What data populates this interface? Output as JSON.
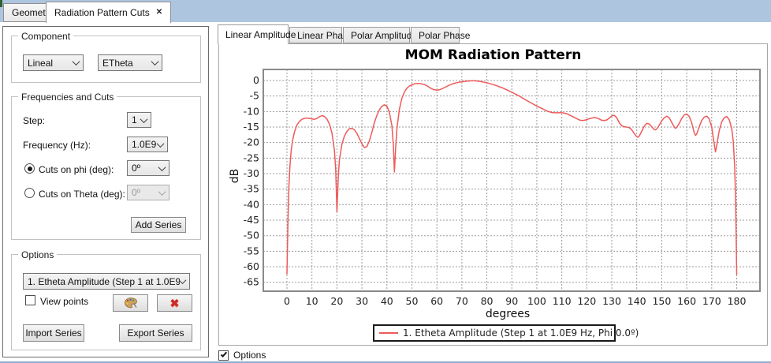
{
  "window": {
    "tabs": [
      {
        "label": "Geometry"
      },
      {
        "label": "Radiation Pattern Cuts",
        "close": "✕"
      }
    ]
  },
  "icons": {
    "delete": "✖"
  },
  "left_panel": {
    "component": {
      "title": "Component",
      "combo1": "Lineal",
      "combo2": "ETheta"
    },
    "freq_cuts": {
      "title": "Frequencies and Cuts",
      "step_label": "Step:",
      "step_value": "1",
      "freq_label": "Frequency (Hz):",
      "freq_value": "1.0E9",
      "phi_label": "Cuts on phi (deg):",
      "phi_value": "0º",
      "theta_label": "Cuts on Theta (deg):",
      "theta_value": "0º",
      "add_series": "Add Series"
    },
    "options": {
      "title": "Options",
      "series_combo": "1. Etheta Amplitude (Step 1 at 1.0E9 ...",
      "view_points": "View points",
      "import": "Import Series",
      "export": "Export Series"
    }
  },
  "right_panel": {
    "tabs": [
      "Linear Amplitude",
      "Linear Phase",
      "Polar Amplitude",
      "Polar Phase"
    ],
    "options_checkbox": "Options"
  },
  "chart_data": {
    "type": "line",
    "title": "MOM Radiation Pattern",
    "xlabel": "degrees",
    "ylabel": "dB",
    "xlim": [
      0,
      180
    ],
    "ylim": [
      -65,
      0
    ],
    "grid": true,
    "x_ticks": [
      0,
      10,
      20,
      30,
      40,
      50,
      60,
      70,
      80,
      90,
      100,
      110,
      120,
      130,
      140,
      150,
      160,
      170,
      180
    ],
    "y_ticks": [
      0,
      -5,
      -10,
      -15,
      -20,
      -25,
      -30,
      -35,
      -40,
      -45,
      -50,
      -55,
      -60,
      -65
    ],
    "legend": {
      "position": "bottom",
      "entries": [
        {
          "label": "1. Etheta Amplitude (Step 1 at 1.0E9 Hz, Phi 0.0º)",
          "color": "#ee5a5a"
        }
      ]
    },
    "series": [
      {
        "name": "1. Etheta Amplitude (Step 1 at 1.0E9 Hz, Phi 0.0º)",
        "color": "#ee5a5a",
        "points": [
          [
            0,
            -62.3
          ],
          [
            0.4,
            -45
          ],
          [
            0.8,
            -34
          ],
          [
            1.2,
            -27.5
          ],
          [
            1.7,
            -22.5
          ],
          [
            2.2,
            -19.5
          ],
          [
            3,
            -16.6
          ],
          [
            4,
            -14.3
          ],
          [
            5,
            -13.2
          ],
          [
            6,
            -12.5
          ],
          [
            7,
            -12.2
          ],
          [
            8,
            -12.1
          ],
          [
            9,
            -12.2
          ],
          [
            10,
            -12.4
          ],
          [
            11,
            -12.5
          ],
          [
            12,
            -12.2
          ],
          [
            13,
            -11.7
          ],
          [
            14,
            -11.3
          ],
          [
            15,
            -11.6
          ],
          [
            16,
            -12.4
          ],
          [
            17,
            -14.0
          ],
          [
            18,
            -16.9
          ],
          [
            19,
            -22.5
          ],
          [
            19.5,
            -28.5
          ],
          [
            20,
            -42.3
          ],
          [
            20.6,
            -30
          ],
          [
            21,
            -25.5
          ],
          [
            22,
            -20.5
          ],
          [
            23,
            -17.9
          ],
          [
            24,
            -16.4
          ],
          [
            25,
            -15.5
          ],
          [
            26,
            -15.4
          ],
          [
            27,
            -15.9
          ],
          [
            28,
            -17.0
          ],
          [
            29,
            -18.7
          ],
          [
            30,
            -20.4
          ],
          [
            31,
            -21.6
          ],
          [
            32,
            -21.3
          ],
          [
            33,
            -19.4
          ],
          [
            34,
            -16.6
          ],
          [
            35,
            -13.6
          ],
          [
            36,
            -11.2
          ],
          [
            37,
            -9.4
          ],
          [
            38,
            -8.3
          ],
          [
            39,
            -7.8
          ],
          [
            40,
            -8.3
          ],
          [
            41,
            -10.2
          ],
          [
            42,
            -14.5
          ],
          [
            42.6,
            -21
          ],
          [
            43,
            -29.5
          ],
          [
            43.5,
            -21.5
          ],
          [
            44,
            -15.5
          ],
          [
            45,
            -9.3
          ],
          [
            46,
            -5.7
          ],
          [
            47,
            -3.7
          ],
          [
            48,
            -2.5
          ],
          [
            49,
            -1.8
          ],
          [
            50,
            -1.4
          ],
          [
            51,
            -1.1
          ],
          [
            52,
            -1.0
          ],
          [
            53,
            -1.0
          ],
          [
            54,
            -1.1
          ],
          [
            55,
            -1.3
          ],
          [
            56,
            -1.7
          ],
          [
            57,
            -2.2
          ],
          [
            58,
            -2.7
          ],
          [
            59,
            -3.0
          ],
          [
            60,
            -3.1
          ],
          [
            61,
            -3.0
          ],
          [
            62,
            -2.7
          ],
          [
            63,
            -2.3
          ],
          [
            64,
            -1.9
          ],
          [
            65,
            -1.5
          ],
          [
            66,
            -1.2
          ],
          [
            67,
            -0.9
          ],
          [
            68,
            -0.7
          ],
          [
            69,
            -0.5
          ],
          [
            70,
            -0.4
          ],
          [
            71,
            -0.3
          ],
          [
            72,
            -0.2
          ],
          [
            73,
            -0.15
          ],
          [
            74,
            -0.1
          ],
          [
            75,
            -0.1
          ],
          [
            76,
            -0.15
          ],
          [
            77,
            -0.25
          ],
          [
            78,
            -0.4
          ],
          [
            79,
            -0.55
          ],
          [
            80,
            -0.75
          ],
          [
            81,
            -0.95
          ],
          [
            82,
            -1.2
          ],
          [
            83,
            -1.45
          ],
          [
            84,
            -1.7
          ],
          [
            85,
            -2.0
          ],
          [
            86,
            -2.3
          ],
          [
            87,
            -2.65
          ],
          [
            88,
            -3.0
          ],
          [
            89,
            -3.4
          ],
          [
            90,
            -3.8
          ],
          [
            91,
            -4.2
          ],
          [
            92,
            -4.6
          ],
          [
            93,
            -5.0
          ],
          [
            94,
            -5.5
          ],
          [
            95,
            -6.0
          ],
          [
            96,
            -6.45
          ],
          [
            97,
            -6.9
          ],
          [
            98,
            -7.35
          ],
          [
            99,
            -7.8
          ],
          [
            100,
            -8.2
          ],
          [
            101,
            -8.6
          ],
          [
            102,
            -9.0
          ],
          [
            103,
            -9.4
          ],
          [
            104,
            -9.8
          ],
          [
            105,
            -10.1
          ],
          [
            106,
            -10.3
          ],
          [
            107,
            -10.4
          ],
          [
            108,
            -10.4
          ],
          [
            109,
            -10.4
          ],
          [
            110,
            -10.4
          ],
          [
            111,
            -10.5
          ],
          [
            112,
            -10.7
          ],
          [
            113,
            -11.1
          ],
          [
            114,
            -11.5
          ],
          [
            115,
            -11.9
          ],
          [
            116,
            -12.3
          ],
          [
            117,
            -12.7
          ],
          [
            118,
            -12.9
          ],
          [
            119,
            -12.8
          ],
          [
            120,
            -12.6
          ],
          [
            121,
            -12.3
          ],
          [
            122,
            -12.1
          ],
          [
            123,
            -11.9
          ],
          [
            124,
            -12.1
          ],
          [
            125,
            -12.4
          ],
          [
            126,
            -12.8
          ],
          [
            127,
            -12.9
          ],
          [
            128,
            -12.7
          ],
          [
            129,
            -12.1
          ],
          [
            130,
            -11.4
          ],
          [
            131,
            -11.2
          ],
          [
            132,
            -12.0
          ],
          [
            133,
            -13.6
          ],
          [
            134,
            -14.6
          ],
          [
            135,
            -14.9
          ],
          [
            136,
            -15.0
          ],
          [
            137,
            -15.2
          ],
          [
            138,
            -15.9
          ],
          [
            139,
            -17.1
          ],
          [
            140,
            -18.1
          ],
          [
            140.5,
            -18.3
          ],
          [
            141,
            -17.9
          ],
          [
            142,
            -16.3
          ],
          [
            143,
            -14.7
          ],
          [
            144,
            -13.8
          ],
          [
            145,
            -14.0
          ],
          [
            146,
            -14.9
          ],
          [
            147,
            -15.8
          ],
          [
            147.5,
            -15.9
          ],
          [
            148,
            -15.6
          ],
          [
            149,
            -14.4
          ],
          [
            150,
            -13.0
          ],
          [
            151,
            -12.0
          ],
          [
            152,
            -11.5
          ],
          [
            153,
            -12.0
          ],
          [
            154,
            -13.5
          ],
          [
            155,
            -15.0
          ],
          [
            155.5,
            -15.4
          ],
          [
            156,
            -15.1
          ],
          [
            157,
            -13.8
          ],
          [
            158,
            -12.2
          ],
          [
            159,
            -11.1
          ],
          [
            160,
            -10.8
          ],
          [
            161,
            -11.6
          ],
          [
            162,
            -13.6
          ],
          [
            163,
            -16.8
          ],
          [
            163.5,
            -17.7
          ],
          [
            164,
            -17.2
          ],
          [
            165,
            -14.9
          ],
          [
            166,
            -12.9
          ],
          [
            167,
            -11.8
          ],
          [
            168,
            -11.5
          ],
          [
            169,
            -12.4
          ],
          [
            170,
            -15.0
          ],
          [
            171,
            -20.5
          ],
          [
            171.5,
            -23.0
          ],
          [
            172,
            -21.0
          ],
          [
            173,
            -16.2
          ],
          [
            174,
            -13.3
          ],
          [
            175,
            -12.0
          ],
          [
            176,
            -11.6
          ],
          [
            177,
            -12.6
          ],
          [
            178,
            -15.5
          ],
          [
            178.6,
            -19.5
          ],
          [
            179.2,
            -28
          ],
          [
            179.6,
            -40
          ],
          [
            180,
            -62.5
          ]
        ]
      }
    ]
  },
  "colors": {
    "tabbar": "#aec5e0",
    "series_red": "#ee5a5a"
  }
}
